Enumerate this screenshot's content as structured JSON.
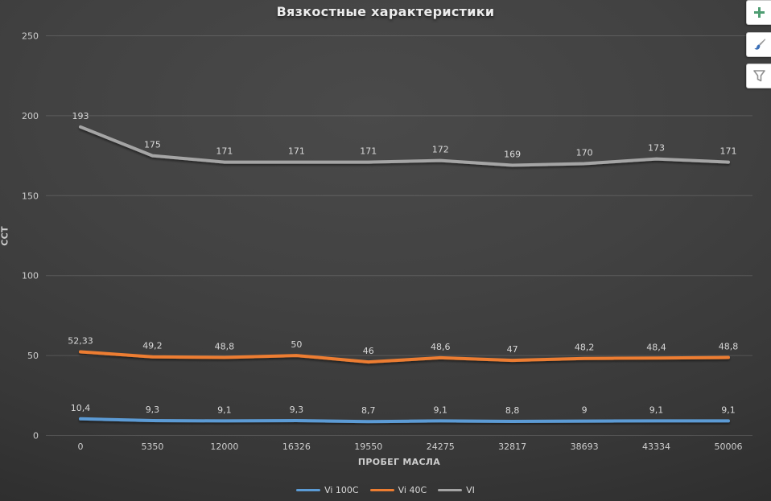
{
  "chart_data": {
    "type": "line",
    "title": "Вязкостные характеристики",
    "xlabel": "ПРОБЕГ МАСЛА",
    "ylabel": "ССТ",
    "categories": [
      "0",
      "5350",
      "12000",
      "16326",
      "19550",
      "24275",
      "32817",
      "38693",
      "43334",
      "50006"
    ],
    "y_ticks": [
      0,
      50,
      100,
      150,
      200,
      250
    ],
    "ylim": [
      0,
      250
    ],
    "grid": true,
    "legend_position": "bottom",
    "series": [
      {
        "name": "Vi 100C",
        "color": "#5B9BD5",
        "values": [
          10.4,
          9.3,
          9.1,
          9.3,
          8.7,
          9.1,
          8.8,
          9,
          9.1,
          9.1
        ],
        "labels": [
          "10,4",
          "9,3",
          "9,1",
          "9,3",
          "8,7",
          "9,1",
          "8,8",
          "9",
          "9,1",
          "9,1"
        ]
      },
      {
        "name": "Vi 40C",
        "color": "#ED7D31",
        "values": [
          52.33,
          49.2,
          48.8,
          50,
          46,
          48.6,
          47,
          48.2,
          48.4,
          48.8
        ],
        "labels": [
          "52,33",
          "49,2",
          "48,8",
          "50",
          "46",
          "48,6",
          "47",
          "48,2",
          "48,4",
          "48,8"
        ]
      },
      {
        "name": "VI",
        "color": "#A5A5A5",
        "values": [
          193,
          175,
          171,
          171,
          171,
          172,
          169,
          170,
          173,
          171
        ],
        "labels": [
          "193",
          "175",
          "171",
          "171",
          "171",
          "172",
          "169",
          "170",
          "173",
          "171"
        ]
      }
    ],
    "styles": {
      "grid_color": "rgba(255,255,255,0.14)",
      "tick_label_color": "#cdcdcd",
      "data_label_color": "#d9d9d9"
    }
  },
  "toolbar": {
    "buttons": [
      {
        "label": "chart elements",
        "icon": "plus-icon",
        "accent": "#4E9D72"
      },
      {
        "label": "chart styles",
        "icon": "paintbrush-icon",
        "accent": "#3A6FB7"
      },
      {
        "label": "chart filters",
        "icon": "filter-icon",
        "accent": "#8f8f8f"
      }
    ]
  }
}
